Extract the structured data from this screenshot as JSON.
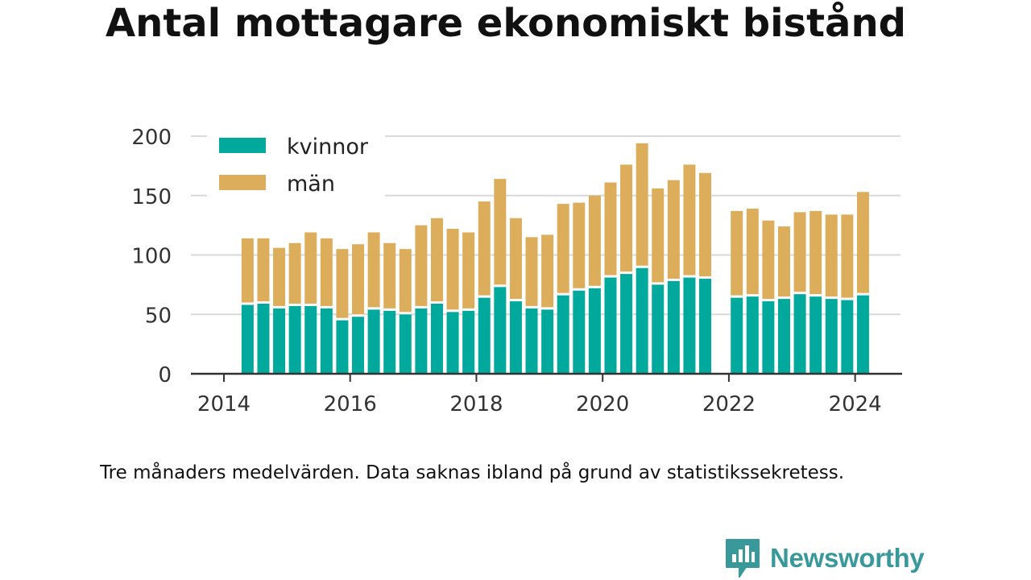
{
  "title": "Antal mottagare ekonomiskt bistånd",
  "note": "Tre månaders medelvärden. Data saknas ibland på grund av statistikssekretess.",
  "brand": "Newsworthy",
  "colors": {
    "kvinnor": "#00a99b",
    "man": "#dcae5c",
    "brand": "#39999a",
    "grid": "#d9d9d9",
    "axis": "#333333"
  },
  "chart_data": {
    "type": "bar",
    "stacked": true,
    "title": "Antal mottagare ekonomiskt bistånd",
    "xlabel": "",
    "ylabel": "",
    "ylim": [
      0,
      200
    ],
    "yticks": [
      0,
      50,
      100,
      150,
      200
    ],
    "xticks": [
      "2014",
      "2016",
      "2018",
      "2020",
      "2022",
      "2024"
    ],
    "xlim": [
      2014.0,
      2025.0
    ],
    "legend_position": "top-left",
    "grid": true,
    "x": [
      2014.375,
      2014.625,
      2014.875,
      2015.125,
      2015.375,
      2015.625,
      2015.875,
      2016.125,
      2016.375,
      2016.625,
      2016.875,
      2017.125,
      2017.375,
      2017.625,
      2017.875,
      2018.125,
      2018.375,
      2018.625,
      2018.875,
      2019.125,
      2019.375,
      2019.625,
      2019.875,
      2020.125,
      2020.375,
      2020.625,
      2020.875,
      2021.125,
      2021.375,
      2021.625,
      2021.875,
      2022.125,
      2022.375,
      2022.625,
      2022.875,
      2023.125,
      2023.375,
      2023.625,
      2023.875,
      2024.125
    ],
    "series": [
      {
        "name": "kvinnor",
        "color": "#00a99b",
        "values": [
          59,
          60,
          56,
          58,
          58,
          56,
          46,
          49,
          55,
          54,
          51,
          56,
          60,
          53,
          54,
          65,
          74,
          62,
          56,
          55,
          67,
          71,
          73,
          82,
          85,
          90,
          76,
          79,
          82,
          81,
          null,
          65,
          66,
          62,
          64,
          68,
          66,
          64,
          63,
          67
        ]
      },
      {
        "name": "män",
        "color": "#dcae5c",
        "values": [
          55,
          54,
          50,
          52,
          61,
          58,
          59,
          60,
          64,
          56,
          54,
          69,
          71,
          69,
          65,
          80,
          90,
          69,
          59,
          62,
          76,
          73,
          77,
          79,
          91,
          104,
          80,
          84,
          94,
          88,
          null,
          72,
          73,
          67,
          60,
          68,
          71,
          70,
          71,
          86
        ]
      }
    ]
  }
}
